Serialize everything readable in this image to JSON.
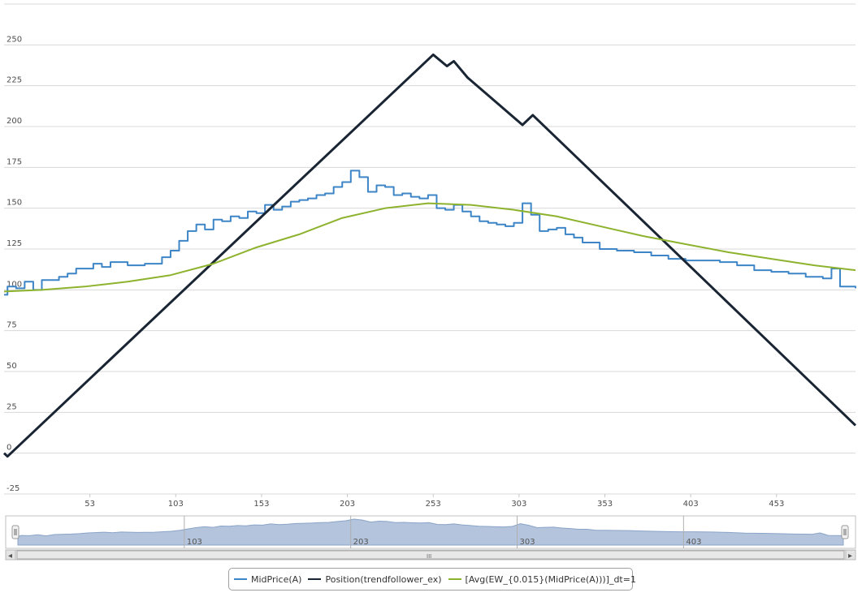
{
  "chart_data": {
    "type": "line",
    "x_ticks": [
      53,
      103,
      153,
      203,
      253,
      303,
      353,
      403,
      453
    ],
    "y_ticks": [
      -25,
      0,
      25,
      50,
      75,
      100,
      125,
      150,
      175,
      200,
      225,
      250
    ],
    "xlim": [
      3,
      499
    ],
    "ylim": [
      -25,
      275
    ],
    "grid": "horizontal",
    "legend_position": "bottom",
    "series": [
      {
        "name": "MidPrice(A)",
        "color": "#3d85c6",
        "step": true,
        "points": [
          [
            3,
            97
          ],
          [
            5,
            102
          ],
          [
            10,
            101
          ],
          [
            15,
            105
          ],
          [
            20,
            100
          ],
          [
            25,
            106
          ],
          [
            35,
            108
          ],
          [
            40,
            110
          ],
          [
            45,
            113
          ],
          [
            55,
            116
          ],
          [
            60,
            114
          ],
          [
            65,
            117
          ],
          [
            75,
            115
          ],
          [
            85,
            116
          ],
          [
            95,
            120
          ],
          [
            100,
            124
          ],
          [
            105,
            130
          ],
          [
            110,
            136
          ],
          [
            115,
            140
          ],
          [
            120,
            137
          ],
          [
            125,
            143
          ],
          [
            130,
            142
          ],
          [
            135,
            145
          ],
          [
            140,
            144
          ],
          [
            145,
            148
          ],
          [
            150,
            147
          ],
          [
            155,
            152
          ],
          [
            160,
            149
          ],
          [
            165,
            151
          ],
          [
            170,
            154
          ],
          [
            175,
            155
          ],
          [
            180,
            156
          ],
          [
            185,
            158
          ],
          [
            190,
            159
          ],
          [
            195,
            163
          ],
          [
            200,
            166
          ],
          [
            205,
            173
          ],
          [
            210,
            169
          ],
          [
            215,
            160
          ],
          [
            220,
            164
          ],
          [
            225,
            163
          ],
          [
            230,
            158
          ],
          [
            235,
            159
          ],
          [
            240,
            157
          ],
          [
            245,
            156
          ],
          [
            250,
            158
          ],
          [
            255,
            150
          ],
          [
            260,
            149
          ],
          [
            265,
            152
          ],
          [
            270,
            148
          ],
          [
            275,
            145
          ],
          [
            280,
            142
          ],
          [
            285,
            141
          ],
          [
            290,
            140
          ],
          [
            295,
            139
          ],
          [
            300,
            141
          ],
          [
            305,
            153
          ],
          [
            310,
            146
          ],
          [
            315,
            136
          ],
          [
            320,
            137
          ],
          [
            325,
            138
          ],
          [
            330,
            134
          ],
          [
            335,
            132
          ],
          [
            340,
            129
          ],
          [
            345,
            129
          ],
          [
            350,
            125
          ],
          [
            360,
            124
          ],
          [
            370,
            123
          ],
          [
            380,
            121
          ],
          [
            390,
            119
          ],
          [
            400,
            118
          ],
          [
            410,
            118
          ],
          [
            420,
            117
          ],
          [
            430,
            115
          ],
          [
            440,
            112
          ],
          [
            450,
            111
          ],
          [
            460,
            110
          ],
          [
            470,
            108
          ],
          [
            480,
            107
          ],
          [
            485,
            113
          ],
          [
            490,
            102
          ],
          [
            499,
            101
          ]
        ]
      },
      {
        "name": "Position(trendfollower_ex)",
        "color": "#1a2533",
        "step": false,
        "points": [
          [
            3,
            0
          ],
          [
            5,
            -2
          ],
          [
            253,
            244
          ],
          [
            261,
            237
          ],
          [
            265,
            240
          ],
          [
            273,
            230
          ],
          [
            305,
            201
          ],
          [
            311,
            207
          ],
          [
            499,
            17
          ]
        ]
      },
      {
        "name": "[Avg(EW_{0.015}(MidPrice(A)))]_dt=1",
        "color": "#8db32e",
        "step": false,
        "points": [
          [
            3,
            99
          ],
          [
            25,
            100
          ],
          [
            50,
            102
          ],
          [
            75,
            105
          ],
          [
            100,
            109
          ],
          [
            125,
            116
          ],
          [
            150,
            126
          ],
          [
            175,
            134
          ],
          [
            200,
            144
          ],
          [
            225,
            150
          ],
          [
            250,
            153
          ],
          [
            275,
            152
          ],
          [
            300,
            149
          ],
          [
            325,
            145
          ],
          [
            350,
            139
          ],
          [
            375,
            133
          ],
          [
            400,
            128
          ],
          [
            425,
            123
          ],
          [
            450,
            119
          ],
          [
            475,
            115
          ],
          [
            499,
            112
          ]
        ]
      }
    ],
    "navigator": {
      "ticks": [
        103,
        203,
        303,
        403
      ]
    }
  },
  "legend": [
    {
      "label": "MidPrice(A)",
      "color": "#3d85c6"
    },
    {
      "label": "Position(trendfollower_ex)",
      "color": "#1a2533"
    },
    {
      "label": "[Avg(EW_{0.015}(MidPrice(A)))]_dt=1",
      "color": "#8db32e"
    }
  ],
  "scrollbar": {
    "left_arrow": "◂",
    "right_arrow": "▸",
    "grip": "III"
  }
}
